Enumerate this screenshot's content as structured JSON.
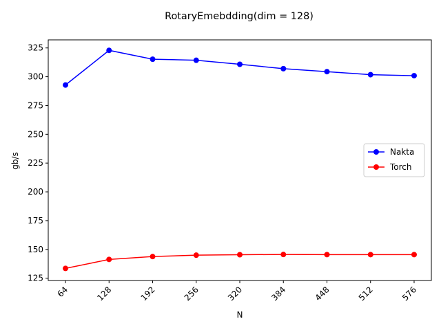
{
  "chart_data": {
    "type": "line",
    "title": "RotaryEmebdding(dim = 128)",
    "xlabel": "N",
    "ylabel": "gb/s",
    "x": [
      64,
      128,
      192,
      256,
      320,
      384,
      448,
      512,
      576
    ],
    "x_tick_labels": [
      "64",
      "128",
      "192",
      "256",
      "320",
      "384",
      "448",
      "512",
      "576"
    ],
    "y_ticks": [
      125,
      150,
      175,
      200,
      225,
      250,
      275,
      300,
      325
    ],
    "y_tick_labels": [
      "125",
      "150",
      "175",
      "200",
      "225",
      "250",
      "275",
      "300",
      "325"
    ],
    "ylim": [
      123,
      332
    ],
    "grid": false,
    "legend_position": "center-right",
    "series": [
      {
        "name": "Nakta",
        "color": "#0000ff",
        "marker": "circle",
        "values": [
          292.8,
          322.9,
          315.2,
          314.3,
          310.8,
          307.0,
          304.4,
          301.8,
          300.9
        ]
      },
      {
        "name": "Torch",
        "color": "#ff0000",
        "marker": "circle",
        "values": [
          133.5,
          141.3,
          143.8,
          145.0,
          145.4,
          145.6,
          145.5,
          145.5,
          145.5
        ]
      }
    ]
  }
}
